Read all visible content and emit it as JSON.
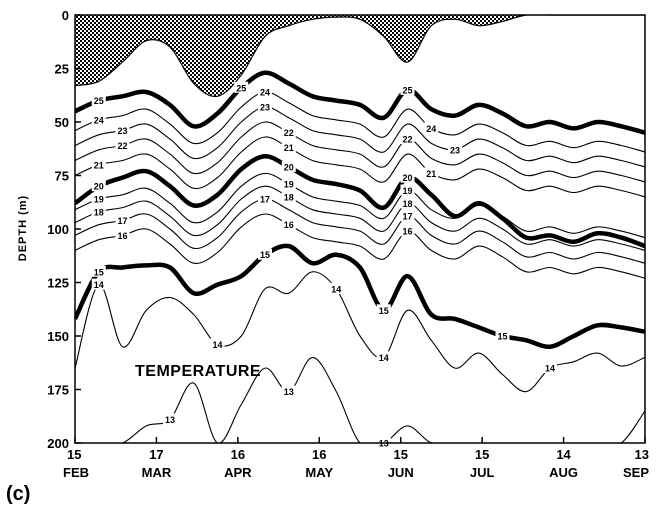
{
  "chart_data": {
    "type": "contour",
    "panel_label": "(c)",
    "annotation": "TEMPERATURE",
    "ylabel": "DEPTH (m)",
    "ylim": [
      0,
      200
    ],
    "y_inverted": true,
    "y_ticks": [
      "0",
      "25",
      "50",
      "75",
      "100",
      "125",
      "150",
      "175",
      "200"
    ],
    "x_ticks": [
      {
        "day": "15",
        "month": "FEB"
      },
      {
        "day": "17",
        "month": "MAR"
      },
      {
        "day": "16",
        "month": "APR"
      },
      {
        "day": "16",
        "month": "MAY"
      },
      {
        "day": "15",
        "month": "JUN"
      },
      {
        "day": "15",
        "month": "JUL"
      },
      {
        "day": "14",
        "month": "AUG"
      },
      {
        "day": "13",
        "month": "SEP"
      }
    ],
    "shaded_region": "temperature above 26",
    "isotherms": [
      {
        "level": 26,
        "depth": [
          33,
          31,
          22,
          12,
          15,
          32,
          38,
          28,
          10,
          5,
          2,
          1,
          2,
          10,
          22,
          5,
          2,
          5,
          3,
          0,
          0,
          0,
          0,
          0,
          0
        ],
        "labels_at": []
      },
      {
        "level": 25,
        "depth": [
          45,
          40,
          38,
          36,
          42,
          52,
          46,
          34,
          27,
          32,
          38,
          40,
          42,
          48,
          35,
          44,
          47,
          42,
          46,
          52,
          50,
          53,
          50,
          52,
          55
        ],
        "labels_at": [
          1,
          7,
          14
        ],
        "bold": true
      },
      {
        "level": 24,
        "depth": [
          54,
          49,
          47,
          44,
          51,
          60,
          55,
          43,
          36,
          41,
          47,
          49,
          51,
          57,
          44,
          53,
          56,
          51,
          55,
          61,
          59,
          62,
          59,
          61,
          64
        ],
        "labels_at": [
          1,
          8,
          15
        ]
      },
      {
        "level": 23,
        "depth": [
          61,
          56,
          54,
          51,
          58,
          67,
          62,
          50,
          43,
          48,
          54,
          56,
          58,
          64,
          51,
          60,
          63,
          58,
          62,
          68,
          66,
          69,
          66,
          68,
          71
        ],
        "labels_at": [
          2,
          8,
          16
        ]
      },
      {
        "level": 22,
        "depth": [
          68,
          63,
          61,
          58,
          65,
          74,
          69,
          57,
          50,
          55,
          61,
          63,
          65,
          71,
          58,
          67,
          70,
          65,
          69,
          75,
          73,
          76,
          73,
          75,
          78
        ],
        "labels_at": [
          2,
          9,
          14
        ]
      },
      {
        "level": 21,
        "depth": [
          75,
          70,
          68,
          65,
          72,
          81,
          76,
          64,
          57,
          62,
          68,
          70,
          72,
          78,
          65,
          74,
          77,
          72,
          76,
          82,
          80,
          83,
          80,
          82,
          85
        ],
        "labels_at": [
          1,
          9,
          15
        ]
      },
      {
        "level": 20,
        "depth": [
          88,
          80,
          76,
          73,
          80,
          89,
          84,
          72,
          66,
          71,
          77,
          79,
          82,
          90,
          76,
          84,
          94,
          88,
          95,
          104,
          103,
          106,
          102,
          104,
          108
        ],
        "labels_at": [
          1,
          9,
          14
        ],
        "bold": true
      },
      {
        "level": 19,
        "depth": [
          91,
          86,
          84,
          81,
          88,
          97,
          92,
          80,
          74,
          79,
          85,
          87,
          89,
          95,
          82,
          91,
          95,
          89,
          94,
          101,
          99,
          102,
          99,
          101,
          104
        ],
        "labels_at": [
          1,
          9,
          14
        ]
      },
      {
        "level": 18,
        "depth": [
          97,
          92,
          90,
          87,
          94,
          103,
          98,
          86,
          80,
          85,
          91,
          93,
          95,
          101,
          88,
          97,
          101,
          95,
          100,
          107,
          105,
          108,
          105,
          107,
          110
        ],
        "labels_at": [
          1,
          9,
          14
        ]
      },
      {
        "level": 17,
        "depth": [
          103,
          98,
          96,
          93,
          100,
          109,
          104,
          92,
          86,
          91,
          97,
          99,
          101,
          107,
          94,
          103,
          107,
          101,
          106,
          113,
          111,
          114,
          111,
          113,
          116
        ],
        "labels_at": [
          2,
          8,
          14
        ]
      },
      {
        "level": 16,
        "depth": [
          110,
          105,
          103,
          100,
          107,
          116,
          111,
          99,
          93,
          98,
          104,
          106,
          108,
          114,
          101,
          110,
          114,
          108,
          113,
          120,
          118,
          121,
          118,
          120,
          123
        ],
        "labels_at": [
          2,
          9,
          14
        ]
      },
      {
        "level": 15,
        "depth": [
          142,
          120,
          118,
          117,
          118,
          130,
          126,
          122,
          112,
          108,
          116,
          112,
          118,
          138,
          122,
          140,
          142,
          146,
          150,
          152,
          155,
          150,
          145,
          146,
          148
        ],
        "labels_at": [
          1,
          8,
          13,
          18
        ],
        "bold": true
      },
      {
        "level": 14,
        "depth": [
          165,
          126,
          155,
          138,
          132,
          140,
          154,
          150,
          128,
          130,
          120,
          128,
          150,
          160,
          138,
          152,
          165,
          158,
          168,
          176,
          165,
          162,
          158,
          164,
          160
        ],
        "labels_at": [
          1,
          6,
          11,
          13,
          20
        ]
      },
      {
        "level": 13,
        "depth": [
          200,
          200,
          200,
          192,
          189,
          172,
          200,
          182,
          165,
          176,
          160,
          176,
          200,
          200,
          192,
          200,
          200,
          200,
          200,
          200,
          200,
          200,
          200,
          200,
          185
        ],
        "labels_at": [
          4,
          9,
          13
        ]
      }
    ]
  }
}
